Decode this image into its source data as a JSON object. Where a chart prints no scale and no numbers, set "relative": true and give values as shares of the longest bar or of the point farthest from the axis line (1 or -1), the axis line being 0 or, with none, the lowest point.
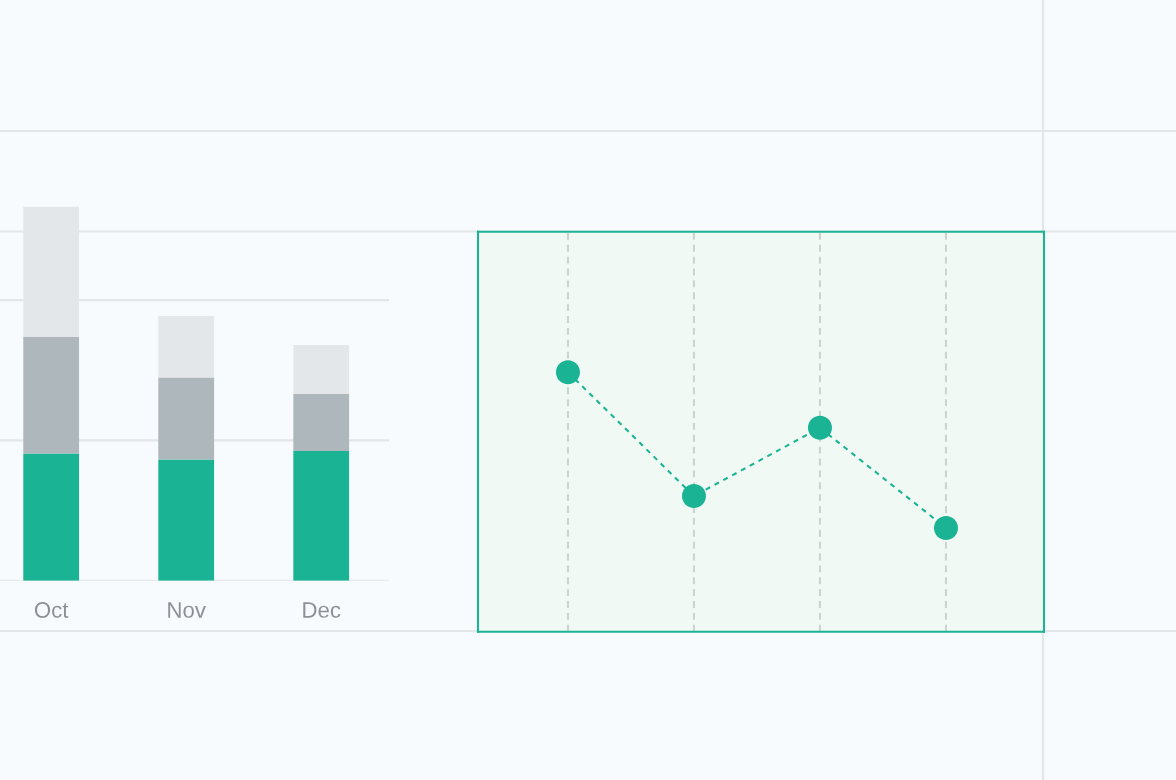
{
  "chart_data": [
    {
      "type": "bar",
      "stacked": true,
      "relative": true,
      "categories": [
        "Oct",
        "Nov",
        "Dec"
      ],
      "series": [
        {
          "color": "#1ab394",
          "values": [
            0.34,
            0.324,
            0.347
          ]
        },
        {
          "color": "#adb7bc",
          "values": [
            0.312,
            0.219,
            0.152
          ]
        },
        {
          "color": "#e4e7ea",
          "values": [
            0.348,
            0.165,
            0.131
          ]
        }
      ],
      "grid": "y"
    },
    {
      "type": "line",
      "relative": true,
      "categories": [
        null,
        null,
        null,
        null
      ],
      "series": [
        {
          "color": "#1ab394",
          "values": [
            1,
            0.523,
            0.786,
            0.4
          ]
        }
      ],
      "marker": "circle",
      "line_style": "dashed",
      "grid": "x"
    }
  ]
}
